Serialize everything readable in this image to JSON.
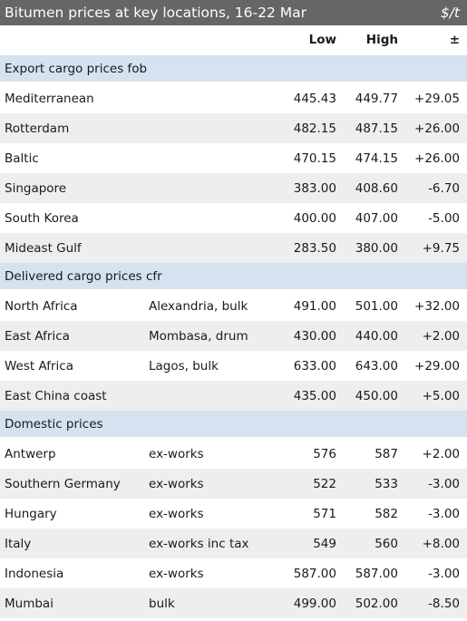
{
  "header": {
    "title": "Bitumen prices at key locations, 16-22 Mar",
    "unit": "$/t"
  },
  "columns": {
    "low": "Low",
    "high": "High",
    "change": "±"
  },
  "sections": [
    {
      "title": "Export cargo prices fob",
      "rows": [
        {
          "location": "Mediterranean",
          "basis": "",
          "low": "445.43",
          "high": "449.77",
          "change": "+29.05"
        },
        {
          "location": "Rotterdam",
          "basis": "",
          "low": "482.15",
          "high": "487.15",
          "change": "+26.00"
        },
        {
          "location": "Baltic",
          "basis": "",
          "low": "470.15",
          "high": "474.15",
          "change": "+26.00"
        },
        {
          "location": "Singapore",
          "basis": "",
          "low": "383.00",
          "high": "408.60",
          "change": "-6.70"
        },
        {
          "location": "South Korea",
          "basis": "",
          "low": "400.00",
          "high": "407.00",
          "change": "-5.00"
        },
        {
          "location": "Mideast Gulf",
          "basis": "",
          "low": "283.50",
          "high": "380.00",
          "change": "+9.75"
        }
      ]
    },
    {
      "title": "Delivered cargo prices cfr",
      "rows": [
        {
          "location": "North Africa",
          "basis": "Alexandria, bulk",
          "low": "491.00",
          "high": "501.00",
          "change": "+32.00"
        },
        {
          "location": "East Africa",
          "basis": "Mombasa, drum",
          "low": "430.00",
          "high": "440.00",
          "change": "+2.00"
        },
        {
          "location": "West Africa",
          "basis": "Lagos, bulk",
          "low": "633.00",
          "high": "643.00",
          "change": "+29.00"
        },
        {
          "location": "East China coast",
          "basis": "",
          "low": "435.00",
          "high": "450.00",
          "change": "+5.00"
        }
      ]
    },
    {
      "title": "Domestic prices",
      "rows": [
        {
          "location": "Antwerp",
          "basis": "ex-works",
          "low": "576",
          "high": "587",
          "change": "+2.00"
        },
        {
          "location": "Southern Germany",
          "basis": "ex-works",
          "low": "522",
          "high": "533",
          "change": "-3.00"
        },
        {
          "location": "Hungary",
          "basis": "ex-works",
          "low": "571",
          "high": "582",
          "change": "-3.00"
        },
        {
          "location": "Italy",
          "basis": "ex-works inc tax",
          "low": "549",
          "high": "560",
          "change": "+8.00"
        },
        {
          "location": "Indonesia",
          "basis": "ex-works",
          "low": "587.00",
          "high": "587.00",
          "change": "-3.00"
        },
        {
          "location": "Mumbai",
          "basis": "bulk",
          "low": "499.00",
          "high": "502.00",
          "change": "-8.50"
        }
      ]
    }
  ]
}
